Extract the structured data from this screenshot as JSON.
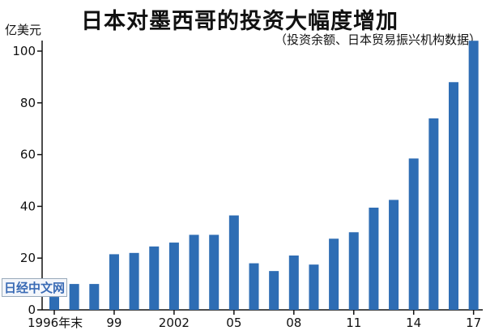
{
  "chart_data": {
    "type": "bar",
    "title": "日本对墨西哥的投资大幅度增加",
    "subtitle": "（投资余额、日本贸易振兴机构数据）",
    "ylabel": "亿美元",
    "xlabel": "",
    "ylim": [
      0,
      105
    ],
    "yticks": [
      0,
      20,
      40,
      60,
      80,
      100
    ],
    "categories": [
      "1996",
      "1997",
      "1998",
      "1999",
      "2000",
      "2001",
      "2002",
      "2003",
      "2004",
      "2005",
      "2006",
      "2007",
      "2008",
      "2009",
      "2010",
      "2011",
      "2012",
      "2013",
      "2014",
      "2015",
      "2016",
      "2017"
    ],
    "values": [
      5,
      10,
      10,
      21.5,
      22,
      24.5,
      26,
      29,
      29,
      36.5,
      18,
      15,
      21,
      17.5,
      27.5,
      30,
      39.5,
      42.5,
      58.5,
      74,
      88,
      104
    ],
    "xtick_labels": [
      {
        "index": 0,
        "text": "1996年末"
      },
      {
        "index": 3,
        "text": "99"
      },
      {
        "index": 6,
        "text": "2002"
      },
      {
        "index": 9,
        "text": "05"
      },
      {
        "index": 12,
        "text": "08"
      },
      {
        "index": 15,
        "text": "11"
      },
      {
        "index": 18,
        "text": "14"
      },
      {
        "index": 21,
        "text": "17"
      }
    ],
    "bar_color": "#2e6db4",
    "grid": false
  },
  "watermark": "日经中文网"
}
